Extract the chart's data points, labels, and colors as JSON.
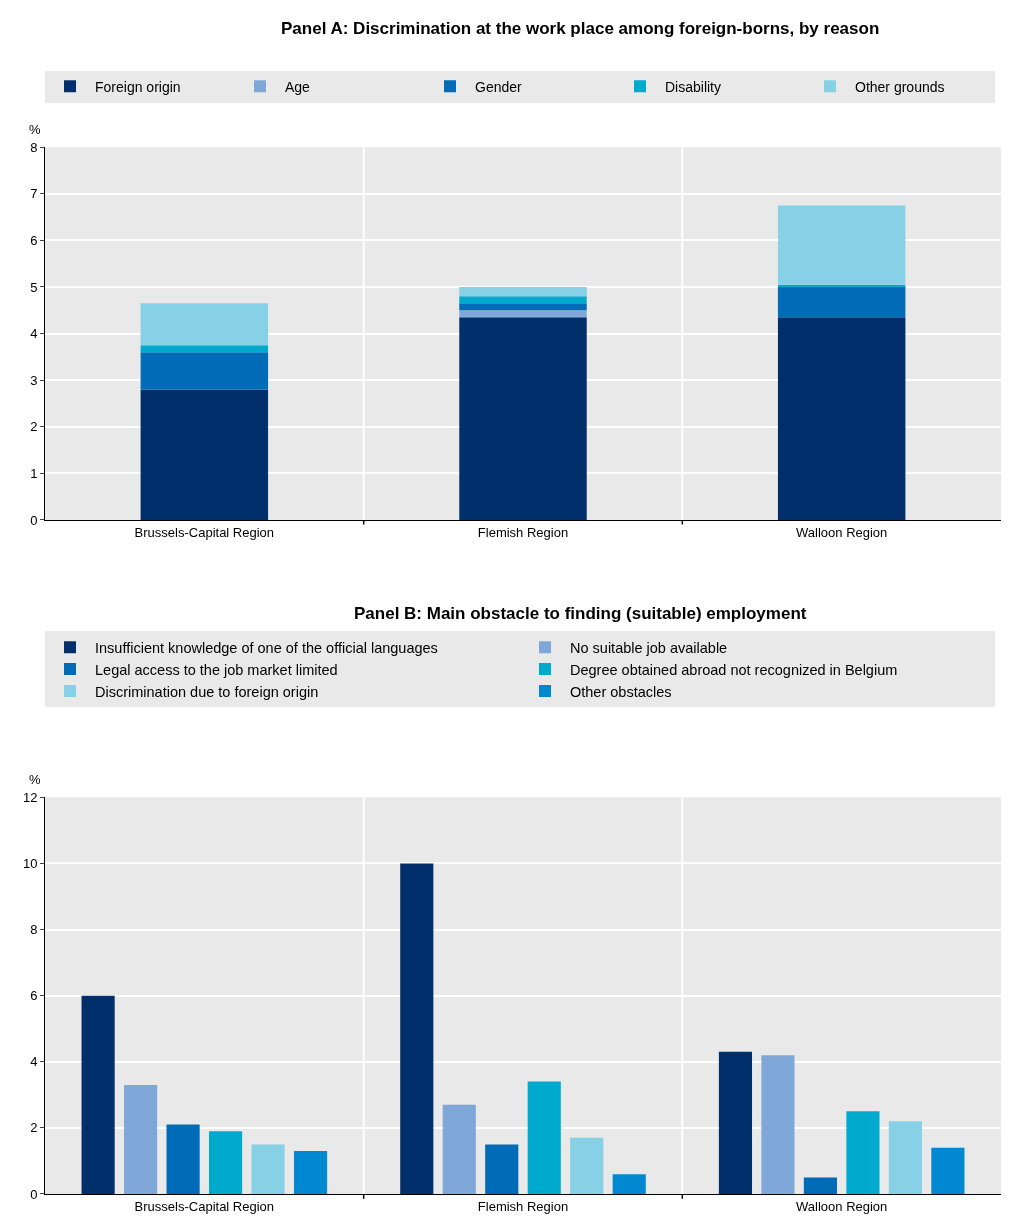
{
  "chart_data": [
    {
      "type": "bar",
      "title": "Panel A: Discrimination at the work place among foreign-borns, by reason",
      "ylabel": "%",
      "stacked": true,
      "grid": true,
      "legend": "top",
      "categories": [
        "Brussels-Capital Region",
        "Flemish Region",
        "Walloon Region"
      ],
      "ylim": [
        0,
        8
      ],
      "yticks": [
        0,
        1,
        2,
        3,
        4,
        5,
        6,
        7,
        8
      ],
      "series": [
        {
          "name": "Foreign origin",
          "color": "#002f6c",
          "values": [
            2.8,
            4.35,
            4.35
          ]
        },
        {
          "name": "Age",
          "color": "#7fa8d9",
          "values": [
            0,
            0.15,
            0
          ]
        },
        {
          "name": "Gender",
          "color": "#006bb6",
          "values": [
            0.8,
            0.15,
            0.65
          ]
        },
        {
          "name": "Disability",
          "color": "#00aacc",
          "values": [
            0.15,
            0.15,
            0.05
          ]
        },
        {
          "name": "Other grounds",
          "color": "#87d1e6",
          "values": [
            0.9,
            0.2,
            1.7
          ]
        }
      ]
    },
    {
      "type": "bar",
      "title": "Panel B: Main obstacle to finding (suitable) employment",
      "ylabel": "%",
      "grid": true,
      "legend": "top",
      "categories": [
        "Brussels-Capital Region",
        "Flemish Region",
        "Walloon Region"
      ],
      "ylim": [
        0,
        12
      ],
      "yticks": [
        0,
        2,
        4,
        6,
        8,
        10,
        12
      ],
      "series": [
        {
          "name": "Insufficient knowledge of one of the official languages",
          "color": "#002f6c",
          "values": [
            6.0,
            10.0,
            4.3
          ]
        },
        {
          "name": "No suitable job available",
          "color": "#7fa8d9",
          "values": [
            3.3,
            2.7,
            4.2
          ]
        },
        {
          "name": "Legal access to the job market limited",
          "color": "#006bb6",
          "values": [
            2.1,
            1.5,
            0.5
          ]
        },
        {
          "name": "Degree obtained abroad not recognized in Belgium",
          "color": "#00aacc",
          "values": [
            1.9,
            3.4,
            2.5
          ]
        },
        {
          "name": "Discrimination due to foreign origin",
          "color": "#87d1e6",
          "values": [
            1.5,
            1.7,
            2.2
          ]
        },
        {
          "name": "Other obstacles",
          "color": "#0088d1",
          "values": [
            1.3,
            0.6,
            1.4
          ]
        }
      ]
    }
  ]
}
